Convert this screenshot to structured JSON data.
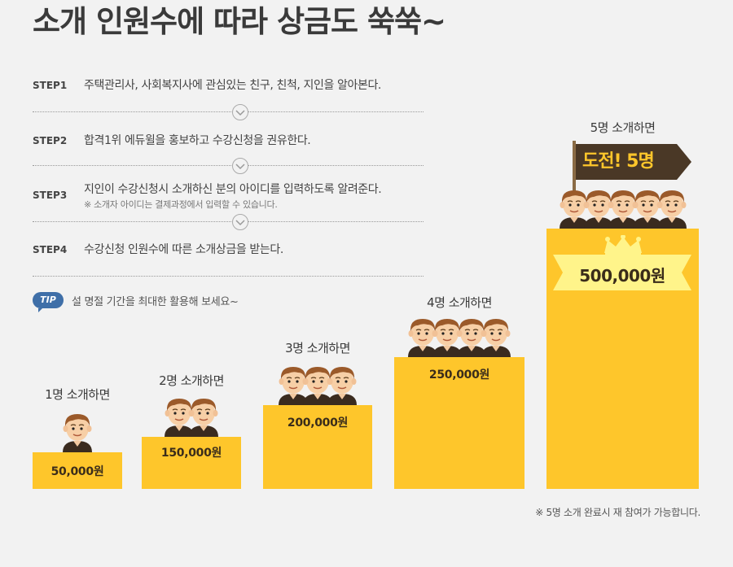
{
  "title": "소개 인원수에 따라 상금도 쑥쑥~",
  "steps": [
    {
      "label": "STEP1",
      "text": "주택관리사, 사회복지사에 관심있는 친구, 친척, 지인을 알아본다.",
      "note": ""
    },
    {
      "label": "STEP2",
      "text": "합격1위 에듀윌을 홍보하고 수강신청을 권유한다.",
      "note": ""
    },
    {
      "label": "STEP3",
      "text": "지인이 수강신청시 소개하신 분의 아이디를 입력하도록 알려준다.",
      "note": "※ 소개자 아이디는 결제과정에서 입력할 수 있습니다."
    },
    {
      "label": "STEP4",
      "text": "수강신청 인원수에 따른 소개상금을 받는다.",
      "note": ""
    }
  ],
  "tip": {
    "badge": "TIP",
    "text": "설 명절 기간을 최대한 활용해 보세요~"
  },
  "tiers": [
    {
      "label": "1명 소개하면",
      "amount": "50,000원",
      "people": 1
    },
    {
      "label": "2명 소개하면",
      "amount": "150,000원",
      "people": 2
    },
    {
      "label": "3명 소개하면",
      "amount": "200,000원",
      "people": 3
    },
    {
      "label": "4명 소개하면",
      "amount": "250,000원",
      "people": 4
    },
    {
      "label": "5명 소개하면",
      "amount": "500,000원",
      "people": 5
    }
  ],
  "challenge": "도전! 5명",
  "footnote": "※ 5명 소개 완료시 재 참여가 가능합니다.",
  "colors": {
    "bar": "#fec62b",
    "flag": "#4a3826",
    "tip": "#3f6fa8",
    "ribbon": "#fff48a"
  },
  "icons": {
    "chevron": "chevron-down-icon",
    "crown": "crown-icon",
    "person": "person-icon"
  }
}
